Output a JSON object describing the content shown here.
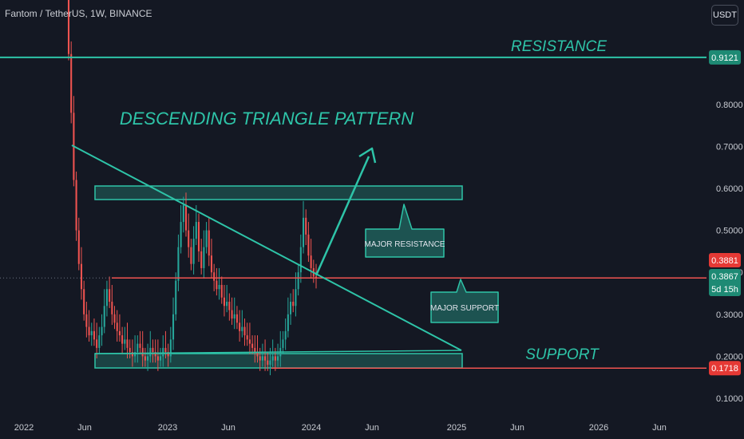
{
  "header": {
    "symbol": "Fantom / TetherUS, 1W, BINANCE",
    "currency_button": "USDT"
  },
  "chart_data": {
    "type": "candlestick",
    "colors": {
      "up": "#26a69a",
      "down": "#ef5350",
      "annotation": "#2ec4a8",
      "support_line": "#ef5350"
    },
    "y_ticks": [
      "0.8000",
      "0.7000",
      "0.6000",
      "0.5000",
      "0.4000",
      "0.3000",
      "0.2000",
      "0.1000"
    ],
    "y_tick_values": [
      0.8,
      0.7,
      0.6,
      0.5,
      0.4,
      0.3,
      0.2,
      0.1
    ],
    "x_ticks": [
      "2022",
      "Jun",
      "2023",
      "Jun",
      "2024",
      "Jun",
      "2025",
      "Jun",
      "2026",
      "Jun"
    ],
    "price_tags": {
      "resistance": "0.9121",
      "last_red": "0.3881",
      "current": "0.3867",
      "countdown": "5d 15h",
      "support": "0.1718"
    },
    "annotations": {
      "title": "DESCENDING TRIANGLE PATTERN",
      "resistance": "RESISTANCE",
      "support": "SUPPORT",
      "major_resistance": "MAJOR RESISTANCE",
      "major_support": "MAJOR SUPPORT"
    },
    "levels": {
      "resistance": 0.9121,
      "support": 0.1718,
      "current": 0.3867
    },
    "closes": [
      0.92,
      0.78,
      0.62,
      0.5,
      0.42,
      0.36,
      0.3,
      0.27,
      0.25,
      0.26,
      0.24,
      0.22,
      0.25,
      0.27,
      0.32,
      0.36,
      0.33,
      0.3,
      0.28,
      0.26,
      0.25,
      0.23,
      0.24,
      0.22,
      0.21,
      0.2,
      0.21,
      0.23,
      0.22,
      0.2,
      0.19,
      0.2,
      0.22,
      0.21,
      0.2,
      0.19,
      0.2,
      0.22,
      0.21,
      0.2,
      0.24,
      0.3,
      0.38,
      0.46,
      0.52,
      0.56,
      0.5,
      0.46,
      0.42,
      0.48,
      0.52,
      0.45,
      0.41,
      0.46,
      0.5,
      0.44,
      0.4,
      0.38,
      0.36,
      0.37,
      0.34,
      0.32,
      0.33,
      0.31,
      0.29,
      0.3,
      0.28,
      0.26,
      0.27,
      0.25,
      0.24,
      0.23,
      0.22,
      0.21,
      0.2,
      0.19,
      0.2,
      0.19,
      0.18,
      0.19,
      0.2,
      0.19,
      0.2,
      0.22,
      0.24,
      0.26,
      0.3,
      0.33,
      0.32,
      0.36,
      0.4,
      0.46,
      0.53,
      0.49,
      0.44,
      0.41,
      0.39,
      0.3867
    ]
  }
}
